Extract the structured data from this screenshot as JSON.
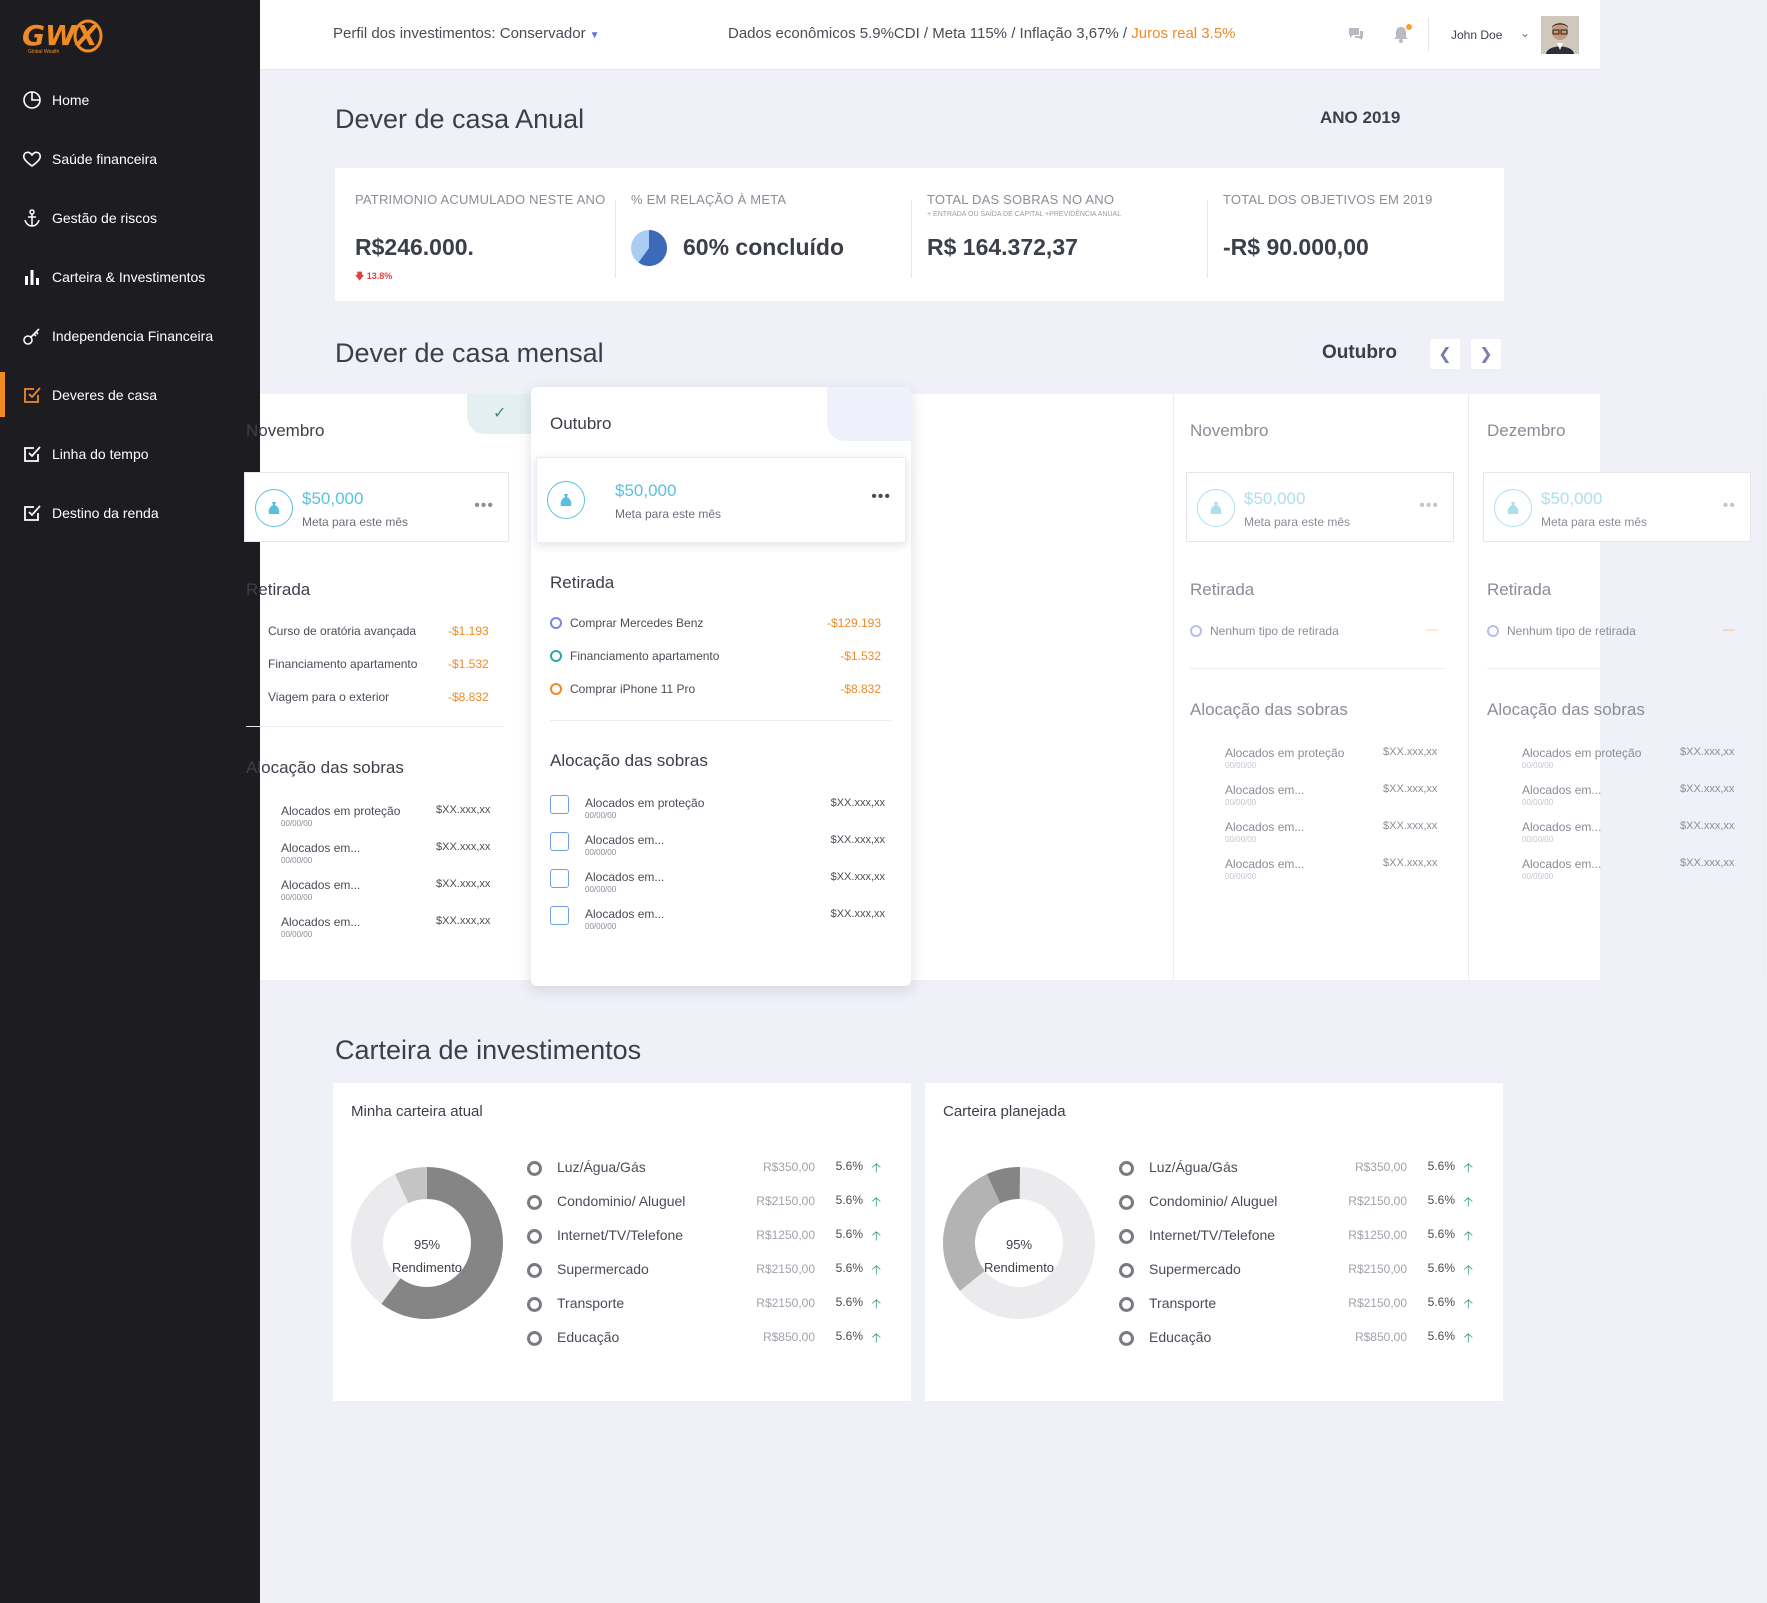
{
  "brand": {
    "logo": "GWX",
    "logo_sub": "Global Wealth"
  },
  "sidebar": {
    "items": [
      {
        "label": "Home",
        "icon": "pie-chart-icon"
      },
      {
        "label": "Saúde financeira",
        "icon": "heart-icon"
      },
      {
        "label": "Gestão de riscos",
        "icon": "anchor-icon"
      },
      {
        "label": "Carteira & Investimentos",
        "icon": "bar-chart-icon"
      },
      {
        "label": "Independencia Financeira",
        "icon": "key-icon"
      },
      {
        "label": "Deveres de casa",
        "icon": "checkbox-icon",
        "active": true
      },
      {
        "label": "Linha do tempo",
        "icon": "checkbox-icon"
      },
      {
        "label": "Destino da renda",
        "icon": "checkbox-icon"
      }
    ]
  },
  "topbar": {
    "profile": "Perfil dos investimentos: Conservador",
    "econ": "Dados econômicos 5.9%CDI  / Meta 115% / Inflação 3,67% /",
    "econ_highlight": "Juros real 3.5%",
    "username": "John Doe"
  },
  "annual": {
    "title": "Dever de casa Anual",
    "year": "ANO 2019",
    "stats": [
      {
        "label": "PATRIMONIO ACUMULADO NESTE ANO",
        "value": "R$246.000.",
        "delta": "13.8%"
      },
      {
        "label": "% EM RELAÇÃO À META",
        "value": "60% concluído",
        "progress": 0.6
      },
      {
        "label": "TOTAL DAS SOBRAS NO ANO",
        "sub": "+ ENTRADA OU SAÍDA DE CAPITAL +PREVIDÊNCIA ANUAL",
        "value": "R$ 164.372,37"
      },
      {
        "label": "TOTAL DOS OBJETIVOS EM 2019",
        "value": "-R$ 90.000,00"
      }
    ]
  },
  "monthly": {
    "title": "Dever de casa mensal",
    "current": "Outubro",
    "meta_caption": "Meta para este mês",
    "retirada_title": "Retirada",
    "alocacao_title": "Alocação das sobras",
    "months": [
      {
        "name": "Novembro",
        "amount": "$50,000",
        "retiradas": [
          {
            "label": "Curso de oratória avançada",
            "value": "-$1.193"
          },
          {
            "label": "Financiamento apartamento",
            "value": "-$1.532"
          },
          {
            "label": "Viagem para o exterior",
            "value": "-$8.832"
          }
        ]
      },
      {
        "name": "Outubro",
        "amount": "$50,000",
        "retiradas": [
          {
            "label": "Comprar Mercedes Benz",
            "value": "-$129.193",
            "color": "#7b83e6"
          },
          {
            "label": "Financiamento apartamento",
            "value": "-$1.532",
            "color": "#2aa8a8"
          },
          {
            "label": "Comprar iPhone 11 Pro",
            "value": "-$8.832",
            "color": "#f08a24"
          }
        ]
      },
      {
        "name": "Novembro",
        "amount": "$50,000",
        "retiradas": [
          {
            "label": "Nenhum tipo de retirada",
            "value": "—"
          }
        ]
      },
      {
        "name": "Dezembro",
        "amount": "$50,000",
        "retiradas": [
          {
            "label": "Nenhum tipo de retirada",
            "value": "—"
          }
        ]
      }
    ],
    "alocacoes": [
      {
        "label": "Alocados em proteção",
        "date": "00/00/00",
        "value": "$XX.xxx,xx"
      },
      {
        "label": "Alocados em...",
        "date": "00/00/00",
        "value": "$XX.xxx,xx"
      },
      {
        "label": "Alocados em...",
        "date": "00/00/00",
        "value": "$XX.xxx,xx"
      },
      {
        "label": "Alocados em...",
        "date": "00/00/00",
        "value": "$XX.xxx,xx"
      }
    ]
  },
  "portfolio": {
    "title": "Carteira de investimentos",
    "cards": [
      {
        "title": "Minha carteira atual",
        "center_pct": "95%",
        "center_label": "Rendimento",
        "rows": [
          {
            "name": "Luz/Água/Gás",
            "amount": "R$350,00",
            "pct": "5.6%"
          },
          {
            "name": "Condominio/ Aluguel",
            "amount": "R$2150,00",
            "pct": "5.6%"
          },
          {
            "name": "Internet/TV/Telefone",
            "amount": "R$1250,00",
            "pct": "5.6%"
          },
          {
            "name": "Supermercado",
            "amount": "R$2150,00",
            "pct": "5.6%"
          },
          {
            "name": "Transporte",
            "amount": "R$2150,00",
            "pct": "5.6%"
          },
          {
            "name": "Educação",
            "amount": "R$850,00",
            "pct": "5.6%"
          }
        ]
      },
      {
        "title": "Carteira planejada",
        "center_pct": "95%",
        "center_label": "Rendimento",
        "rows": [
          {
            "name": "Luz/Água/Gás",
            "amount": "R$350,00",
            "pct": "5.6%"
          },
          {
            "name": "Condominio/ Aluguel",
            "amount": "R$2150,00",
            "pct": "5.6%"
          },
          {
            "name": "Internet/TV/Telefone",
            "amount": "R$1250,00",
            "pct": "5.6%"
          },
          {
            "name": "Supermercado",
            "amount": "R$2150,00",
            "pct": "5.6%"
          },
          {
            "name": "Transporte",
            "amount": "R$2150,00",
            "pct": "5.6%"
          },
          {
            "name": "Educação",
            "amount": "R$850,00",
            "pct": "5.6%"
          }
        ]
      }
    ]
  },
  "colors": {
    "accent": "#f08a24",
    "sidebar": "#1d1d21",
    "teal": "#5bc0de",
    "up": "#2ba36b",
    "down": "#e53e3e"
  }
}
